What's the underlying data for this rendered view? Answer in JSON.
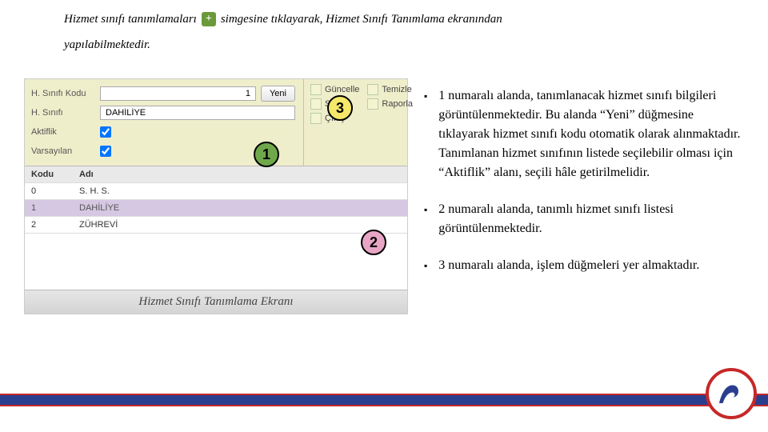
{
  "intro": {
    "part1": "Hizmet sınıfı tanımlamaları",
    "part2": "simgesine tıklayarak, Hizmet Sınıfı Tanımlama ekranından",
    "part3": "yapılabilmektedir."
  },
  "form": {
    "labels": {
      "kodu": "H. Sınıfı Kodu",
      "sinifi": "H. Sınıfı",
      "aktiflik": "Aktiflik",
      "varsayilan": "Varsayılan"
    },
    "values": {
      "kodu": "1",
      "sinifi": "DAHİLİYE",
      "aktiflik": true,
      "varsayilan": true
    },
    "yeniLabel": "Yeni"
  },
  "actions": {
    "guncelle": "Güncelle",
    "temizle": "Temizle",
    "sil": "Sil",
    "raporla": "Raporla",
    "cikis": "Çıkış"
  },
  "table": {
    "headers": {
      "kodu": "Kodu",
      "adi": "Adı"
    },
    "rows": [
      {
        "kodu": "0",
        "adi": "S. H. S."
      },
      {
        "kodu": "1",
        "adi": "DAHİLİYE"
      },
      {
        "kodu": "2",
        "adi": "ZÜHREVİ"
      }
    ],
    "selectedIndex": 1
  },
  "caption": "Hizmet Sınıfı Tanımlama Ekranı",
  "callouts": {
    "c1": "1",
    "c2": "2",
    "c3": "3"
  },
  "bullets": [
    "1 numaralı alanda, tanımlanacak hizmet sınıfı bilgileri görüntülenmektedir. Bu alanda “Yeni” düğmesine tıklayarak hizmet sınıfı kodu otomatik olarak alınmaktadır. Tanımlanan hizmet sınıfının listede seçilebilir olması için “Aktiflik” alanı, seçili hâle getirilmelidir.",
    "2 numaralı alanda, tanımlı hizmet sınıfı listesi görüntülenmektedir.",
    "3 numaralı alanda, işlem düğmeleri yer almaktadır."
  ],
  "colors": {
    "footer": "#2a3e8f",
    "footerBorder": "#c62828"
  }
}
